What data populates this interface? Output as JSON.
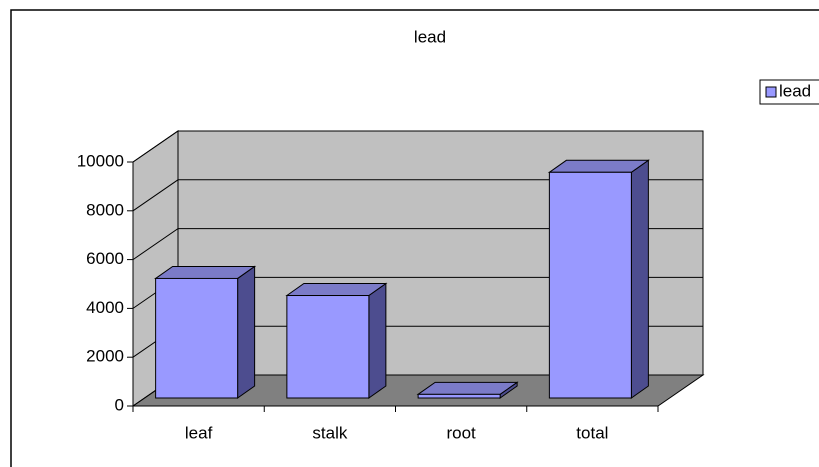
{
  "chart_data": {
    "type": "bar3d",
    "title": "lead",
    "categories": [
      "leaf",
      "stalk",
      "root",
      "total"
    ],
    "series": [
      {
        "name": "lead",
        "color": "#9999ff",
        "values": [
          4900,
          4200,
          150,
          9250
        ]
      }
    ],
    "ylim": [
      0,
      10000
    ],
    "yticks": [
      0,
      2000,
      4000,
      6000,
      8000,
      10000
    ],
    "grid": true,
    "legend": "right"
  }
}
